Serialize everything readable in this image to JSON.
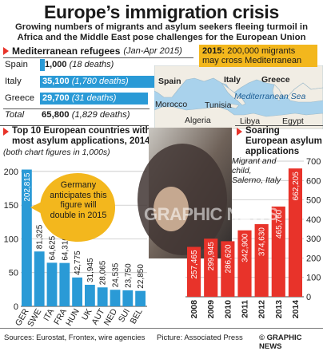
{
  "header": {
    "title": "Europe’s immigration crisis",
    "subtitle": "Growing numbers of migrants and asylum seekers fleeing turmoil in Africa and the Middle East pose challenges for the European Union"
  },
  "refugees": {
    "heading": "Mediterranean refugees",
    "period": "(Jan-Apr 2015)",
    "rows": [
      {
        "country": "Spain",
        "value": "1,000",
        "deaths": "(18 deaths)",
        "amount": 1000
      },
      {
        "country": "Italy",
        "value": "35,100",
        "deaths": "(1,780 deaths)",
        "amount": 35100
      },
      {
        "country": "Greece",
        "value": "29,700",
        "deaths": "(31 deaths)",
        "amount": 29700
      }
    ],
    "total_label": "Total",
    "total_value": "65,800",
    "total_deaths": "(1,829 deaths)"
  },
  "callout_2015": {
    "year": "2015:",
    "text": "200,000 migrants may cross Mediterranean"
  },
  "map": {
    "labels": {
      "spain": "Spain",
      "italy": "Italy",
      "greece": "Greece",
      "sea": "Mediterranean Sea",
      "morocco": "Morocco",
      "tunisia": "Tunisia",
      "algeria": "Algeria",
      "libya": "Libya",
      "egypt": "Egypt"
    }
  },
  "top10": {
    "heading": "Top 10 European countries with most asylum applications, 2014",
    "note": "(both chart figures in 1,000s)",
    "annotation": "Germany anticipates this figure will double in 2015"
  },
  "soaring": {
    "heading": "Soaring European asylum applications"
  },
  "photo": {
    "caption": "Migrant and child, Salerno, Italy",
    "watermark": "GRAPHIC NEWS"
  },
  "footer": {
    "sources": "Sources: Eurostat, Frontex, wire agencies",
    "picture": "Picture: Associated Press",
    "brand": "© GRAPHIC NEWS"
  },
  "colors": {
    "blue": "#2a9ad6",
    "red": "#e8332a",
    "accent": "#f3b71d",
    "sea": "#a9d2ec",
    "land": "#f1ede4"
  },
  "chart_data": [
    {
      "type": "bar",
      "title": "Top 10 European countries with most asylum applications, 2014",
      "categories": [
        "GER",
        "SWE",
        "ITA",
        "FRA",
        "HUN",
        "UK",
        "AUT",
        "NED",
        "SUI",
        "BEL"
      ],
      "values": [
        202815,
        81325,
        64625,
        64310,
        42775,
        31945,
        28065,
        24535,
        23750,
        22850
      ],
      "value_labels": [
        "202,815",
        "81,325",
        "64,625",
        "64,310",
        "42,775",
        "31,945",
        "28,065",
        "24,535",
        "23,750",
        "22,850"
      ],
      "yticks": [
        "0",
        "50",
        "100",
        "150",
        "200"
      ],
      "ylim": [
        0,
        220000
      ],
      "color": "#2a9ad6"
    },
    {
      "type": "bar",
      "title": "Soaring European asylum applications",
      "categories": [
        "2008",
        "2009",
        "2010",
        "2011",
        "2012",
        "2013",
        "2014"
      ],
      "values": [
        257465,
        299945,
        286620,
        342900,
        374630,
        465760,
        662205
      ],
      "value_labels": [
        "257,465",
        "299,945",
        "286,620",
        "342,900",
        "374,630",
        "465,760",
        "662,205"
      ],
      "yticks": [
        "0",
        "100",
        "200",
        "300",
        "400",
        "500",
        "600",
        "700"
      ],
      "ylim": [
        0,
        700000
      ],
      "color": "#e8332a"
    }
  ]
}
